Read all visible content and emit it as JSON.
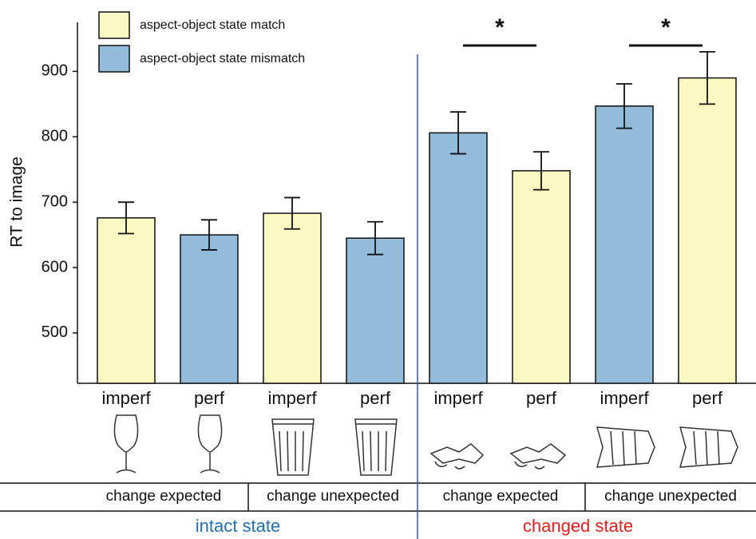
{
  "chart_data": {
    "type": "bar",
    "y_label": "RT to image",
    "categories": [
      "imperf",
      "perf",
      "imperf",
      "perf",
      "imperf",
      "perf",
      "imperf",
      "perf"
    ],
    "series": [
      {
        "name": "aspect-object state match",
        "color": "#fbf9c3",
        "values": [
          676,
          null,
          683,
          null,
          null,
          748,
          null,
          890
        ],
        "errors": [
          24,
          null,
          24,
          null,
          null,
          29,
          null,
          40
        ]
      },
      {
        "name": "aspect-object state mismatch",
        "color": "#92bcd9",
        "values": [
          null,
          650,
          null,
          645,
          806,
          null,
          847,
          null
        ],
        "errors": [
          null,
          23,
          null,
          25,
          32,
          null,
          34,
          null
        ]
      }
    ],
    "ylim": [
      423,
      975
    ],
    "yticks": [
      500,
      600,
      700,
      800,
      900
    ],
    "significance": [
      {
        "label": "*",
        "between": [
          4,
          5
        ]
      },
      {
        "label": "*",
        "between": [
          6,
          7
        ]
      }
    ],
    "subgroups": [
      "change expected",
      "change unexpected",
      "change expected",
      "change unexpected"
    ],
    "groups": [
      {
        "label": "intact state",
        "color": "#1f6fb4"
      },
      {
        "label": "changed state",
        "color": "#ee1c1c"
      }
    ]
  }
}
